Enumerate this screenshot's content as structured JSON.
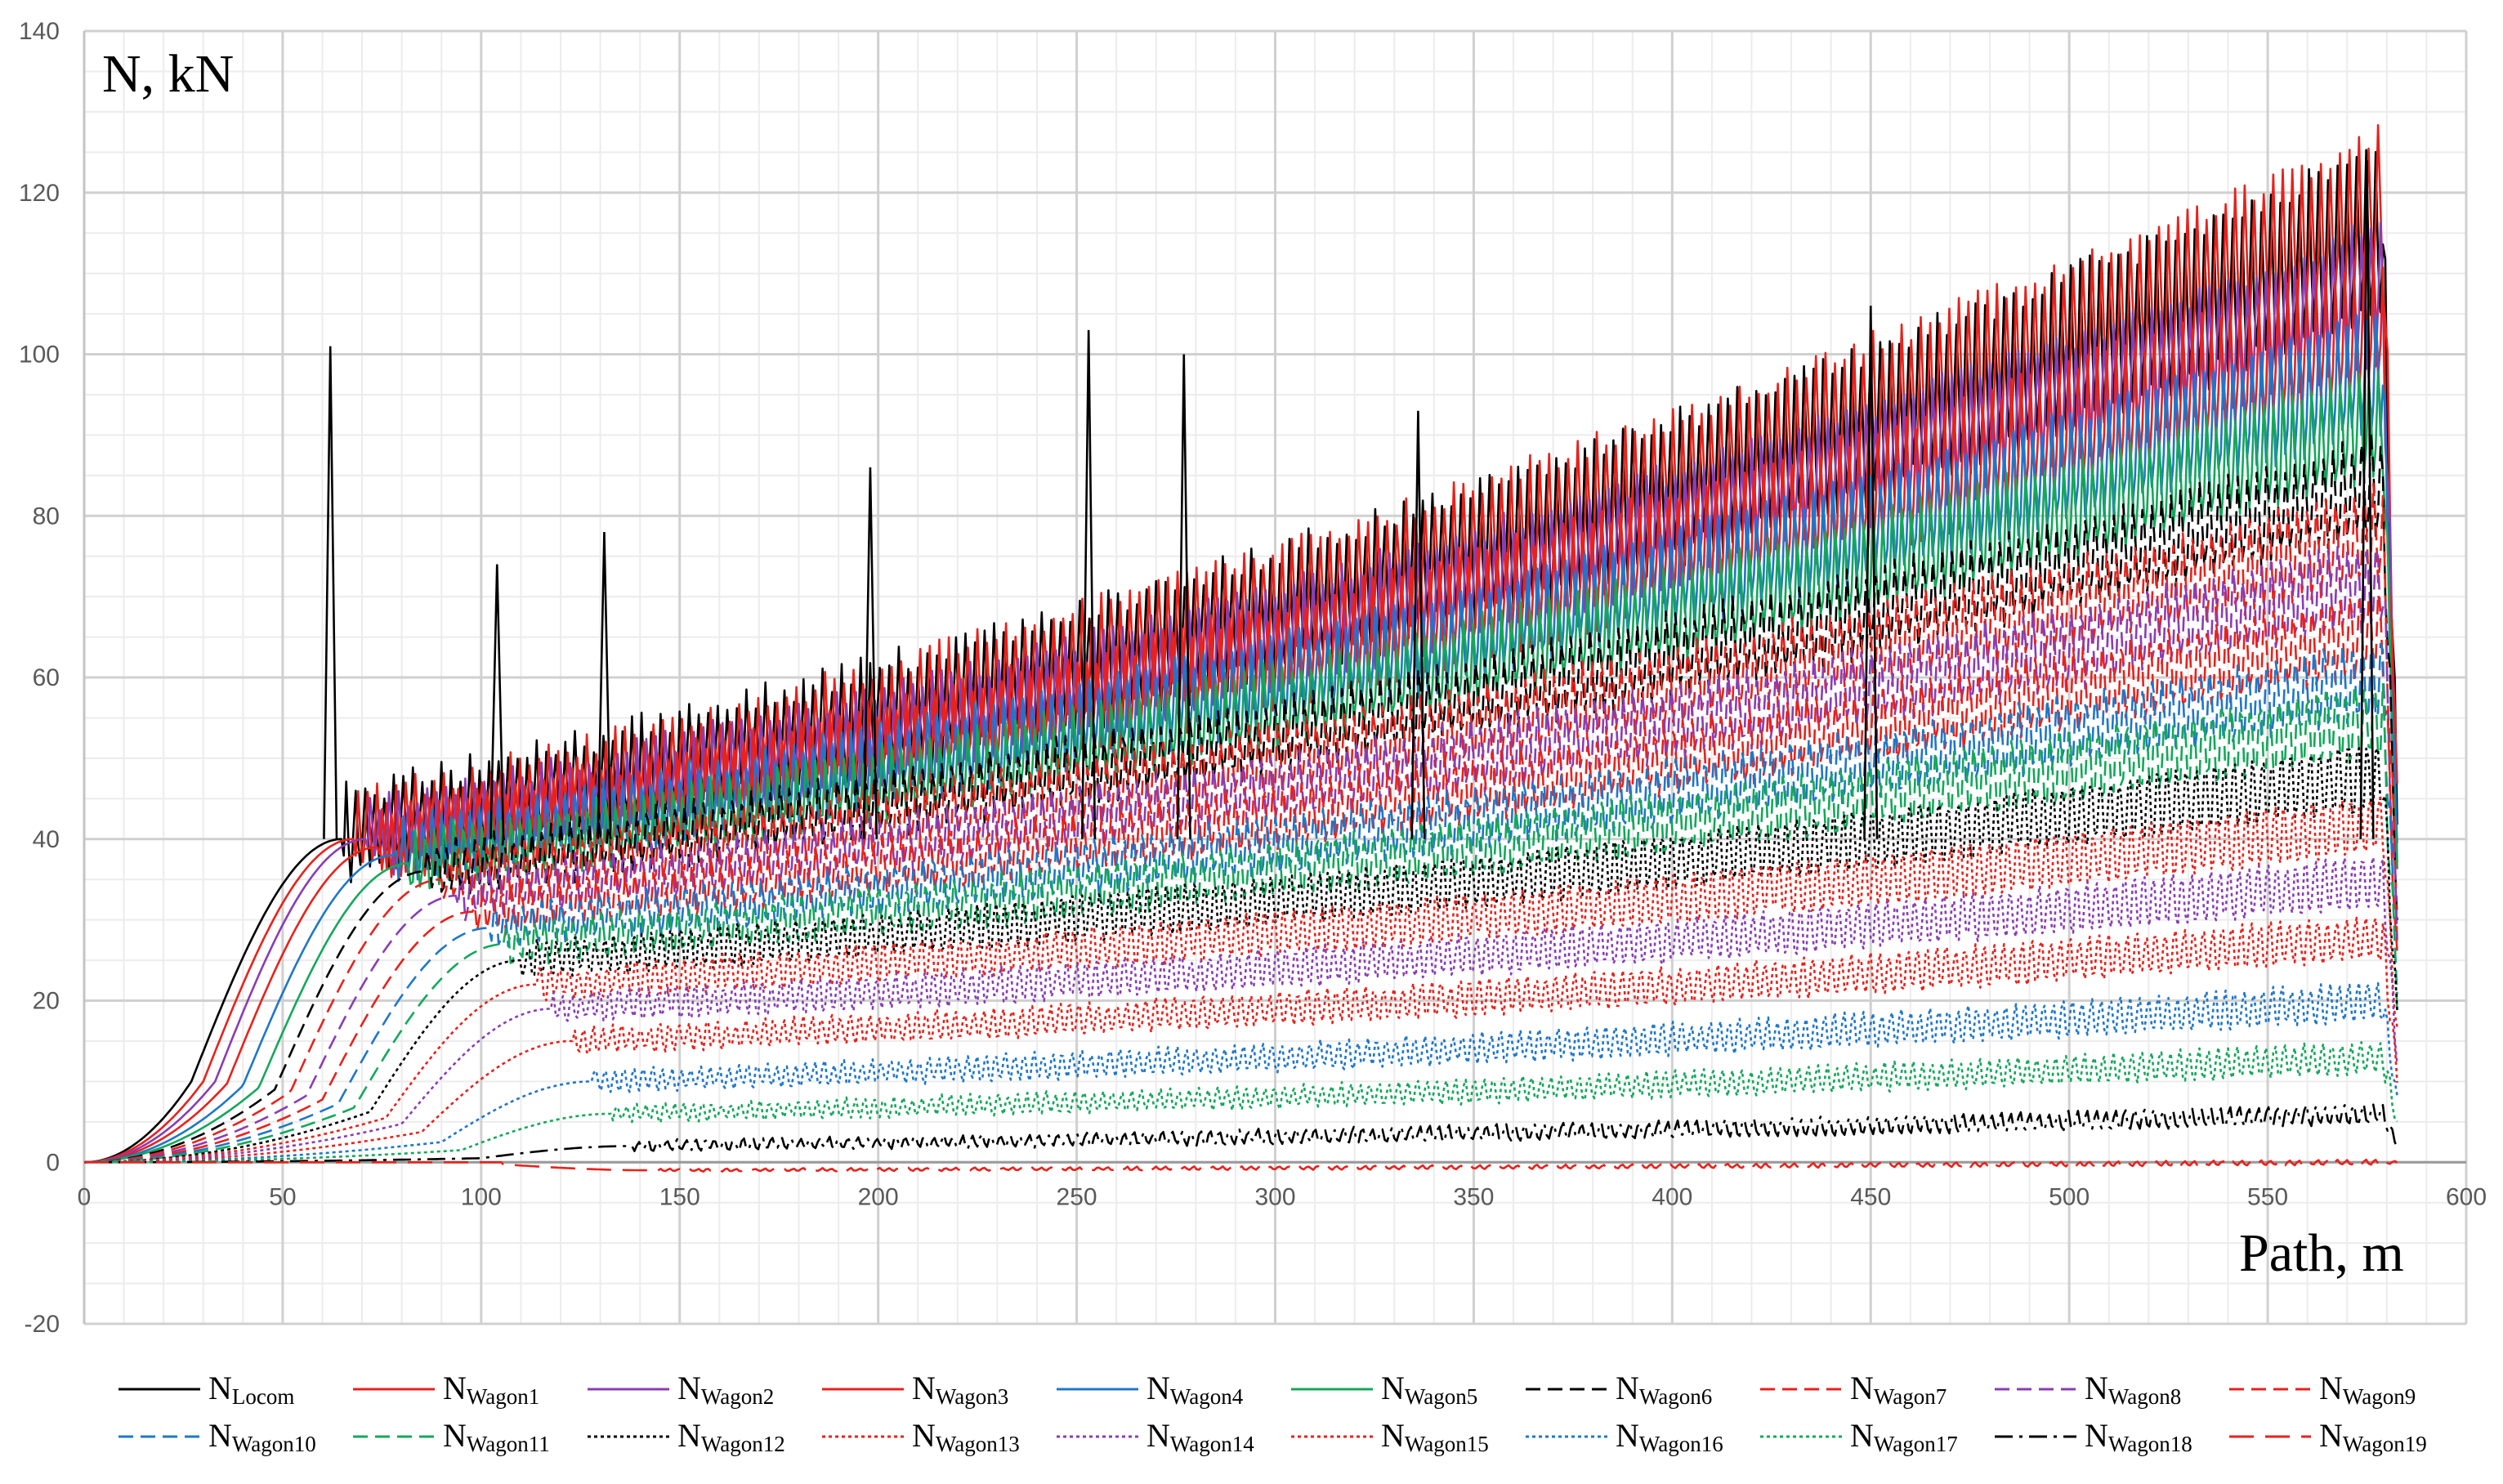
{
  "chart_data": {
    "type": "line",
    "title": "",
    "xlabel": "Path, m",
    "ylabel": "N, kN",
    "xlim": [
      0,
      600
    ],
    "ylim": [
      -20,
      140
    ],
    "x_ticks": [
      0,
      50,
      100,
      150,
      200,
      250,
      300,
      350,
      400,
      450,
      500,
      550,
      600
    ],
    "y_ticks": [
      -20,
      0,
      20,
      40,
      60,
      80,
      100,
      120,
      140
    ],
    "grid": true,
    "legend_position": "bottom",
    "series": [
      {
        "name": "NLocom",
        "base": "N",
        "sub": "Locom",
        "color": "#000000",
        "dash": "solid",
        "onset": 27,
        "rise": 38,
        "plateau": 40,
        "final": 115,
        "amp": 20
      },
      {
        "name": "NWagon1",
        "base": "N",
        "sub": "Wagon1",
        "color": "#e8221c",
        "dash": "solid",
        "onset": 30,
        "rise": 38,
        "plateau": 40,
        "final": 118,
        "amp": 18
      },
      {
        "name": "NWagon2",
        "base": "N",
        "sub": "Wagon2",
        "color": "#8a3db3",
        "dash": "solid",
        "onset": 33,
        "rise": 38,
        "plateau": 40,
        "final": 108,
        "amp": 16
      },
      {
        "name": "NWagon3",
        "base": "N",
        "sub": "Wagon3",
        "color": "#e8221c",
        "dash": "solid",
        "onset": 36,
        "rise": 38,
        "plateau": 39,
        "final": 104,
        "amp": 16
      },
      {
        "name": "NWagon4",
        "base": "N",
        "sub": "Wagon4",
        "color": "#1f77c9",
        "dash": "solid",
        "onset": 40,
        "rise": 38,
        "plateau": 38,
        "final": 98,
        "amp": 14
      },
      {
        "name": "NWagon5",
        "base": "N",
        "sub": "Wagon5",
        "color": "#14a85a",
        "dash": "solid",
        "onset": 44,
        "rise": 38,
        "plateau": 37,
        "final": 92,
        "amp": 13
      },
      {
        "name": "NWagon6",
        "base": "N",
        "sub": "Wagon6",
        "color": "#000000",
        "dash": "dash",
        "onset": 48,
        "rise": 38,
        "plateau": 36,
        "final": 84,
        "amp": 12
      },
      {
        "name": "NWagon7",
        "base": "N",
        "sub": "Wagon7",
        "color": "#e8221c",
        "dash": "dash",
        "onset": 52,
        "rise": 38,
        "plateau": 35,
        "final": 78,
        "amp": 12
      },
      {
        "name": "NWagon8",
        "base": "N",
        "sub": "Wagon8",
        "color": "#8a3db3",
        "dash": "dash",
        "onset": 56,
        "rise": 38,
        "plateau": 33,
        "final": 72,
        "amp": 11
      },
      {
        "name": "NWagon9",
        "base": "N",
        "sub": "Wagon9",
        "color": "#e8221c",
        "dash": "dash",
        "onset": 60,
        "rise": 38,
        "plateau": 31,
        "final": 66,
        "amp": 11
      },
      {
        "name": "NWagon10",
        "base": "N",
        "sub": "Wagon10",
        "color": "#1f77c9",
        "dash": "dash",
        "onset": 64,
        "rise": 38,
        "plateau": 29,
        "final": 60,
        "amp": 10
      },
      {
        "name": "NWagon11",
        "base": "N",
        "sub": "Wagon11",
        "color": "#14a85a",
        "dash": "dash",
        "onset": 68,
        "rise": 38,
        "plateau": 27,
        "final": 55,
        "amp": 10
      },
      {
        "name": "NWagon12",
        "base": "N",
        "sub": "Wagon12",
        "color": "#000000",
        "dash": "dot",
        "onset": 72,
        "rise": 38,
        "plateau": 25,
        "final": 48,
        "amp": 9
      },
      {
        "name": "NWagon13",
        "base": "N",
        "sub": "Wagon13",
        "color": "#e8221c",
        "dash": "dot",
        "onset": 76,
        "rise": 38,
        "plateau": 22,
        "final": 42,
        "amp": 8
      },
      {
        "name": "NWagon14",
        "base": "N",
        "sub": "Wagon14",
        "color": "#8a3db3",
        "dash": "dot",
        "onset": 80,
        "rise": 38,
        "plateau": 19,
        "final": 35,
        "amp": 7
      },
      {
        "name": "NWagon15",
        "base": "N",
        "sub": "Wagon15",
        "color": "#e8221c",
        "dash": "dot",
        "onset": 85,
        "rise": 38,
        "plateau": 15,
        "final": 28,
        "amp": 6
      },
      {
        "name": "NWagon16",
        "base": "N",
        "sub": "Wagon16",
        "color": "#1f77c9",
        "dash": "dot",
        "onset": 90,
        "rise": 38,
        "plateau": 10,
        "final": 20,
        "amp": 5
      },
      {
        "name": "NWagon17",
        "base": "N",
        "sub": "Wagon17",
        "color": "#14a85a",
        "dash": "dot",
        "onset": 95,
        "rise": 38,
        "plateau": 6,
        "final": 13,
        "amp": 4
      },
      {
        "name": "NWagon18",
        "base": "N",
        "sub": "Wagon18",
        "color": "#000000",
        "dash": "dashdot",
        "onset": 100,
        "rise": 38,
        "plateau": 2,
        "final": 6,
        "amp": 2.5
      },
      {
        "name": "NWagon19",
        "base": "N",
        "sub": "Wagon19",
        "color": "#e8221c",
        "dash": "longdash",
        "onset": 105,
        "rise": 38,
        "plateau": -1,
        "final": 0,
        "amp": 0.6
      }
    ],
    "x_end": 583,
    "peak_events": [
      {
        "x": 62,
        "y": 101
      },
      {
        "x": 104,
        "y": 74
      },
      {
        "x": 131,
        "y": 78
      },
      {
        "x": 198,
        "y": 86
      },
      {
        "x": 253,
        "y": 103
      },
      {
        "x": 277,
        "y": 100
      },
      {
        "x": 336,
        "y": 93
      },
      {
        "x": 450,
        "y": 106
      },
      {
        "x": 575,
        "y": 124
      }
    ]
  }
}
